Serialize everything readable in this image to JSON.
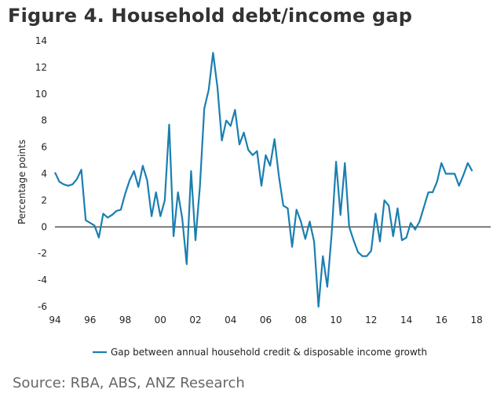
{
  "figure": {
    "title": "Figure 4. Household debt/income gap",
    "source": "Source: RBA, ABS, ANZ Research"
  },
  "colors": {
    "series": "#1a7fb0",
    "title": "#333333",
    "source": "#666666"
  },
  "chart_data": {
    "type": "line",
    "title": "",
    "xlabel": "",
    "ylabel": "Percentage points",
    "xlim": [
      1994,
      2018.8
    ],
    "ylim": [
      -6,
      14
    ],
    "y_ticks": [
      -6,
      -4,
      -2,
      0,
      2,
      4,
      6,
      8,
      10,
      12,
      14
    ],
    "x_ticks": [
      {
        "value": 1994,
        "label": "94"
      },
      {
        "value": 1996,
        "label": "96"
      },
      {
        "value": 1998,
        "label": "98"
      },
      {
        "value": 2000,
        "label": "00"
      },
      {
        "value": 2002,
        "label": "02"
      },
      {
        "value": 2004,
        "label": "04"
      },
      {
        "value": 2006,
        "label": "06"
      },
      {
        "value": 2008,
        "label": "08"
      },
      {
        "value": 2010,
        "label": "10"
      },
      {
        "value": 2012,
        "label": "12"
      },
      {
        "value": 2014,
        "label": "14"
      },
      {
        "value": 2016,
        "label": "16"
      },
      {
        "value": 2018,
        "label": "18"
      }
    ],
    "grid": false,
    "zero_line": true,
    "legend_position": "bottom-center",
    "series": [
      {
        "name": "Gap between annual household credit & disposable income growth",
        "x": [
          1994.0,
          1994.25,
          1994.5,
          1994.75,
          1995.0,
          1995.25,
          1995.5,
          1995.75,
          1996.0,
          1996.25,
          1996.5,
          1996.75,
          1997.0,
          1997.25,
          1997.5,
          1997.75,
          1998.0,
          1998.25,
          1998.5,
          1998.75,
          1999.0,
          1999.25,
          1999.5,
          1999.75,
          2000.0,
          2000.25,
          2000.5,
          2000.75,
          2001.0,
          2001.25,
          2001.5,
          2001.75,
          2002.0,
          2002.25,
          2002.5,
          2002.75,
          2003.0,
          2003.25,
          2003.5,
          2003.75,
          2004.0,
          2004.25,
          2004.5,
          2004.75,
          2005.0,
          2005.25,
          2005.5,
          2005.75,
          2006.0,
          2006.25,
          2006.5,
          2006.75,
          2007.0,
          2007.25,
          2007.5,
          2007.75,
          2008.0,
          2008.25,
          2008.5,
          2008.75,
          2009.0,
          2009.25,
          2009.5,
          2009.75,
          2010.0,
          2010.25,
          2010.5,
          2010.75,
          2011.0,
          2011.25,
          2011.5,
          2011.75,
          2012.0,
          2012.25,
          2012.5,
          2012.75,
          2013.0,
          2013.25,
          2013.5,
          2013.75,
          2014.0,
          2014.25,
          2014.5,
          2014.75,
          2015.0,
          2015.25,
          2015.5,
          2015.75,
          2016.0,
          2016.25,
          2016.5,
          2016.75,
          2017.0,
          2017.25,
          2017.5,
          2017.75
        ],
        "y": [
          4.1,
          3.4,
          3.2,
          3.1,
          3.2,
          3.6,
          4.3,
          0.5,
          0.3,
          0.1,
          -0.8,
          1.0,
          0.7,
          0.9,
          1.2,
          1.3,
          2.5,
          3.5,
          4.2,
          3.0,
          4.6,
          3.5,
          0.8,
          2.6,
          0.8,
          2.0,
          7.7,
          -0.7,
          2.6,
          0.6,
          -2.8,
          4.2,
          -1.0,
          3.0,
          8.9,
          10.3,
          13.1,
          10.5,
          6.5,
          8.0,
          7.6,
          8.8,
          6.2,
          7.1,
          5.8,
          5.4,
          5.7,
          3.1,
          5.4,
          4.6,
          6.6,
          3.8,
          1.6,
          1.4,
          -1.5,
          1.3,
          0.4,
          -0.9,
          0.4,
          -1.1,
          -6.0,
          -2.2,
          -4.5,
          -0.5,
          4.9,
          0.9,
          4.8,
          0.0,
          -1.0,
          -1.9,
          -2.2,
          -2.2,
          -1.8,
          1.0,
          -1.1,
          2.0,
          1.6,
          -0.7,
          1.4,
          -1.0,
          -0.8,
          0.3,
          -0.2,
          0.4,
          1.5,
          2.6,
          2.6,
          3.4,
          4.8,
          4.0,
          4.0,
          4.0,
          3.1,
          3.9,
          4.8,
          4.2
        ]
      }
    ]
  }
}
